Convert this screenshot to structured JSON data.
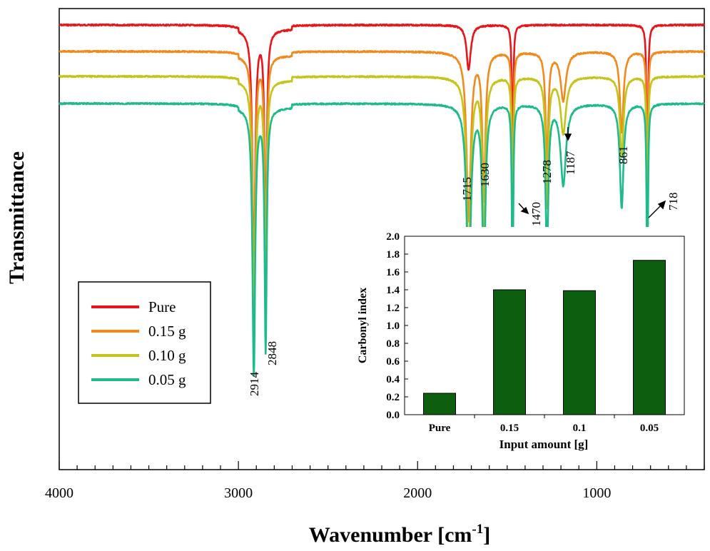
{
  "chart_data": [
    {
      "type": "line",
      "title": "",
      "xlabel": "Wavenumber [cm",
      "xlabel_superscript": "-1",
      "xlabel_suffix": "]",
      "ylabel": "Transmittance",
      "xlim": [
        4000,
        400
      ],
      "x_reversed": true,
      "y_tick_labels_shown": false,
      "x_ticks": [
        {
          "value": 4000,
          "label": "4000"
        },
        {
          "value": 3000,
          "label": "3000"
        },
        {
          "value": 2000,
          "label": "2000"
        },
        {
          "value": 1000,
          "label": "1000"
        }
      ],
      "grid": false,
      "legend_position": "left",
      "series": [
        {
          "name": "Pure",
          "color": "#e8151b",
          "baseline": 0,
          "peaks": [
            [
              2914,
              3.1
            ],
            [
              2848,
              2.8
            ],
            [
              1715,
              0.55
            ],
            [
              1470,
              2.05
            ],
            [
              718,
              2.4
            ]
          ]
        },
        {
          "name": "0.15 g",
          "color": "#f08a1c",
          "baseline": 0,
          "peaks": [
            [
              2914,
              2.8
            ],
            [
              2848,
              2.6
            ],
            [
              1715,
              2.1
            ],
            [
              1630,
              1.8
            ],
            [
              1470,
              2.6
            ],
            [
              1278,
              1.4
            ],
            [
              1187,
              0.6
            ],
            [
              861,
              1.0
            ],
            [
              718,
              2.1
            ]
          ]
        },
        {
          "name": "0.10 g",
          "color": "#c4c41a",
          "baseline": 0,
          "peaks": [
            [
              2914,
              3.0
            ],
            [
              2848,
              2.8
            ],
            [
              1715,
              2.2
            ],
            [
              1630,
              2.0
            ],
            [
              1470,
              2.7
            ],
            [
              1278,
              1.6
            ],
            [
              1187,
              0.7
            ],
            [
              861,
              1.0
            ],
            [
              718,
              2.3
            ]
          ]
        },
        {
          "name": "0.05 g",
          "color": "#1fba8b",
          "baseline": 0,
          "peaks": [
            [
              2914,
              3.3
            ],
            [
              2848,
              3.0
            ],
            [
              1715,
              2.3
            ],
            [
              1630,
              2.2
            ],
            [
              1470,
              2.8
            ],
            [
              1278,
              1.9
            ],
            [
              1187,
              1.0
            ],
            [
              861,
              1.3
            ],
            [
              718,
              2.6
            ]
          ]
        }
      ],
      "annotations": [
        "2914",
        "2848",
        "1715",
        "1630",
        "1470",
        "1278",
        "1187",
        "861",
        "718"
      ]
    },
    {
      "type": "bar",
      "title": "",
      "xlabel": "Input amount [g]",
      "ylabel": "Carbonyl index",
      "categories": [
        "Pure",
        "0.15",
        "0.1",
        "0.05"
      ],
      "values": [
        0.24,
        1.4,
        1.39,
        1.73
      ],
      "ylim": [
        0.0,
        2.0
      ],
      "y_ticks": [
        "0.0",
        "0.2",
        "0.4",
        "0.6",
        "0.8",
        "1.0",
        "1.2",
        "1.4",
        "1.6",
        "1.8",
        "2.0"
      ],
      "bar_color": "#0e5e10",
      "grid": false
    }
  ]
}
